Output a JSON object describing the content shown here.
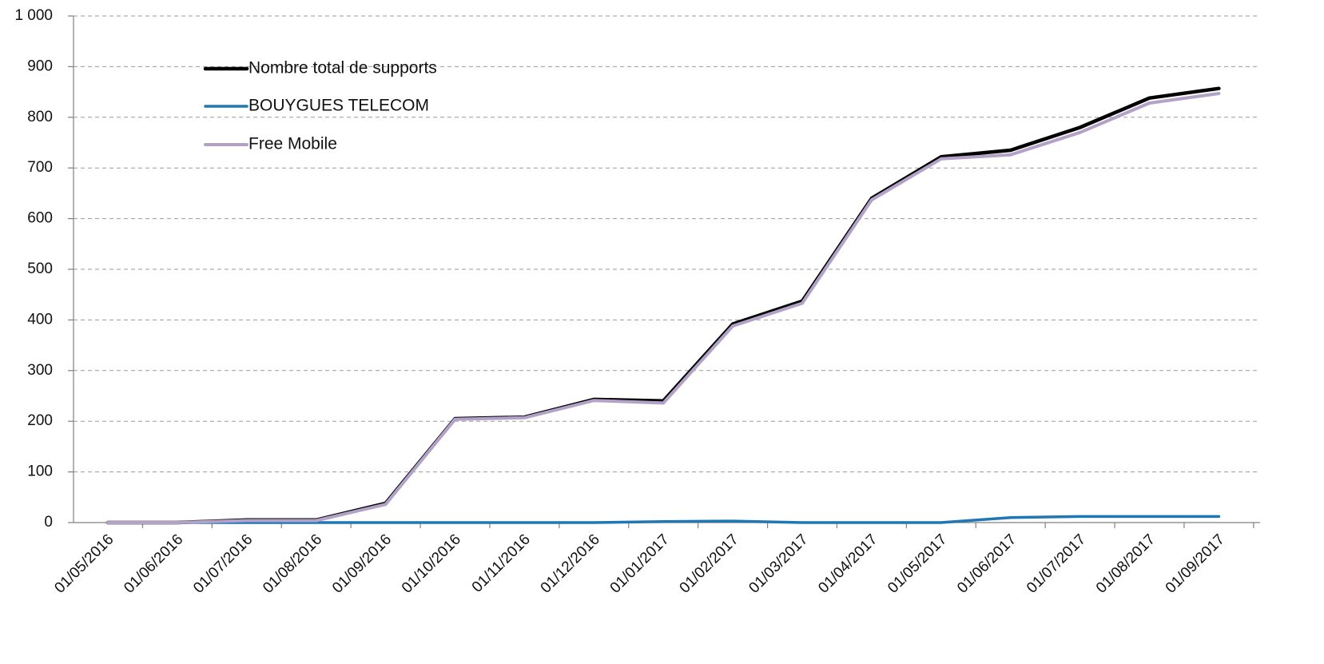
{
  "chart_data": {
    "type": "line",
    "title": "",
    "xlabel": "",
    "ylabel": "",
    "ylim": [
      0,
      1000
    ],
    "y_ticks": [
      "0",
      "100",
      "200",
      "300",
      "400",
      "500",
      "600",
      "700",
      "800",
      "900",
      "1 000"
    ],
    "categories": [
      "01/05/2016",
      "01/06/2016",
      "01/07/2016",
      "01/08/2016",
      "01/09/2016",
      "01/10/2016",
      "01/11/2016",
      "01/12/2016",
      "01/01/2017",
      "01/02/2017",
      "01/03/2017",
      "01/04/2017",
      "01/05/2017",
      "01/06/2017",
      "01/07/2017",
      "01/08/2017",
      "01/09/2017"
    ],
    "grid": true,
    "legend_position": "top-left",
    "series": [
      {
        "name": "Nombre total de supports",
        "color": "#000000",
        "values": [
          0,
          0,
          5,
          5,
          38,
          205,
          208,
          243,
          240,
          392,
          437,
          640,
          722,
          735,
          780,
          838,
          857
        ]
      },
      {
        "name": "BOUYGUES TELECOM",
        "color": "#1f77b4",
        "values": [
          0,
          0,
          0,
          0,
          0,
          0,
          0,
          0,
          2,
          3,
          0,
          0,
          0,
          10,
          12,
          12,
          12
        ]
      },
      {
        "name": "Free Mobile",
        "color": "#b3a2c7",
        "values": [
          0,
          0,
          4,
          4,
          36,
          204,
          207,
          241,
          236,
          388,
          433,
          637,
          718,
          726,
          770,
          828,
          847
        ]
      }
    ]
  }
}
